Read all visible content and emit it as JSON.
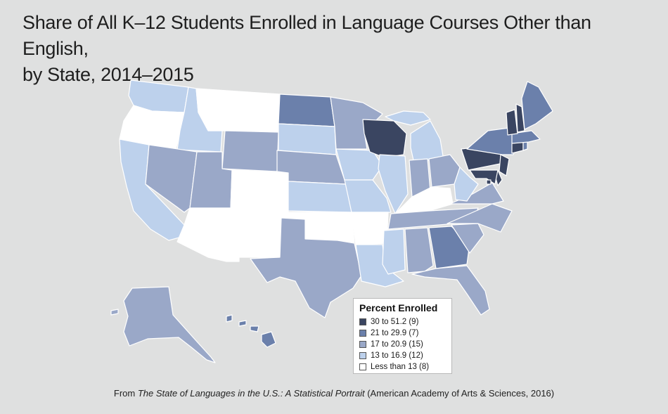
{
  "title_line1": "Share of All K–12 Students Enrolled in Language Courses Other than English,",
  "title_line2": "by State, 2014–2015",
  "colors": {
    "c5": "#3a4561",
    "c4": "#6b80ab",
    "c3": "#9aa8c8",
    "c2": "#bdd1ec",
    "c1": "#ffffff"
  },
  "legend": {
    "title": "Percent Enrolled",
    "items": [
      {
        "label": "30 to 51.2 (9)",
        "color": "#3a4561"
      },
      {
        "label": "21 to 29.9 (7)",
        "color": "#6b80ab"
      },
      {
        "label": "17 to 20.9 (15)",
        "color": "#9aa8c8"
      },
      {
        "label": "13 to 16.9 (12)",
        "color": "#bdd1ec"
      },
      {
        "label": "Less than 13 (8)",
        "color": "#ffffff"
      }
    ]
  },
  "source": {
    "prefix": "From ",
    "work": "The State of Languages in the U.S.: A Statistical Portrait",
    "suffix": " (American Academy of Arts & Sciences, 2016)"
  },
  "state_categories": {
    "WA": "c2",
    "OR": "c1",
    "CA": "c2",
    "ID": "c2",
    "NV": "c3",
    "MT": "c1",
    "WY": "c3",
    "UT": "c3",
    "AZ": "c1",
    "CO": "c1",
    "NM": "c1",
    "ND": "c4",
    "SD": "c2",
    "NE": "c3",
    "KS": "c2",
    "OK": "c1",
    "TX": "c3",
    "MN": "c3",
    "IA": "c2",
    "MO": "c2",
    "AR": "c1",
    "LA": "c2",
    "WI": "c5",
    "IL": "c2",
    "MI": "c2",
    "IN": "c3",
    "OH": "c3",
    "KY": "c1",
    "TN": "c3",
    "MS": "c2",
    "AL": "c3",
    "GA": "c4",
    "FL": "c3",
    "SC": "c3",
    "NC": "c3",
    "VA": "c3",
    "WV": "c2",
    "PA": "c5",
    "NY": "c4",
    "ME": "c4",
    "VT": "c5",
    "NH": "c5",
    "MA": "c4",
    "RI": "c4",
    "CT": "c5",
    "NJ": "c5",
    "DE": "c5",
    "MD": "c5",
    "DC": "c5",
    "AK": "c3",
    "HI": "c4"
  }
}
